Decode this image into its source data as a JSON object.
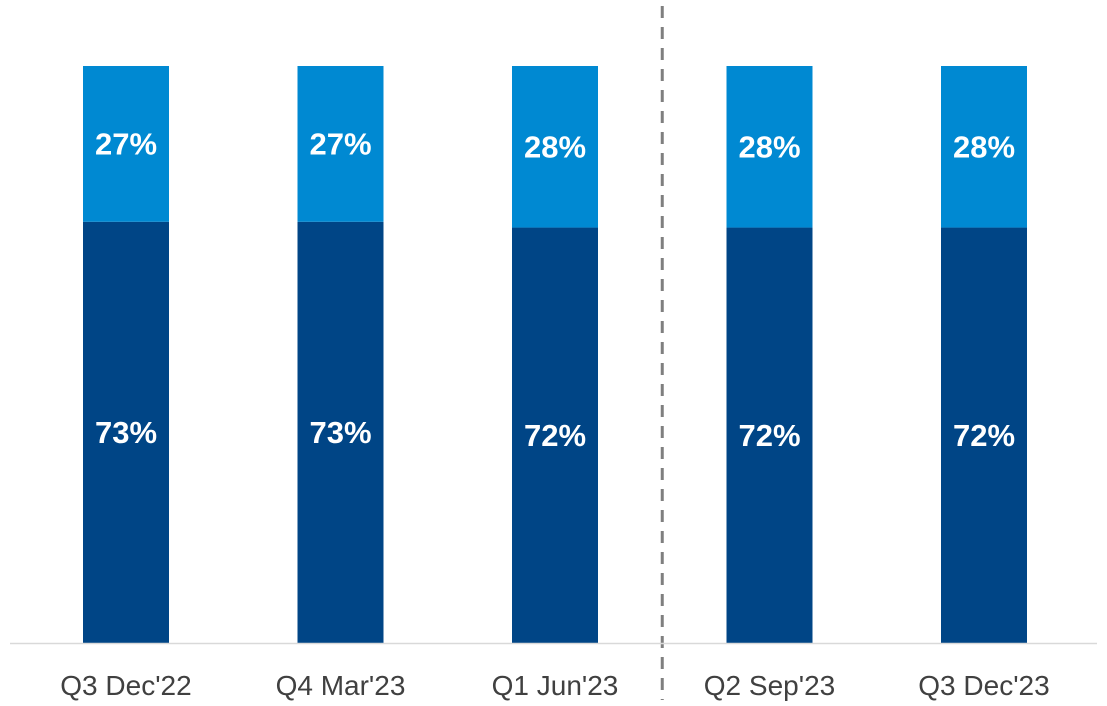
{
  "chart_data": {
    "type": "bar",
    "stacked": true,
    "percent_stacked": true,
    "categories": [
      "Q3 Dec'22",
      "Q4 Mar'23",
      "Q1 Jun'23",
      "Q2 Sep'23",
      "Q3 Dec'23"
    ],
    "series": [
      {
        "values": [
          73,
          73,
          72,
          72,
          72
        ],
        "color": "#004586"
      },
      {
        "values": [
          27,
          27,
          28,
          28,
          28
        ],
        "color": "#0089d2"
      }
    ],
    "data_labels": [
      [
        "73%",
        "73%",
        "72%",
        "72%",
        "72%"
      ],
      [
        "27%",
        "27%",
        "28%",
        "28%",
        "28%"
      ]
    ],
    "ylim": [
      0,
      100
    ],
    "divider_after_category_index": 2,
    "grid": false,
    "legend": "none",
    "colors": {
      "axis_line": "#d9d9d9",
      "divider": "#7f7f7f",
      "label_text": "#ffffff",
      "category_text": "#404040"
    }
  }
}
